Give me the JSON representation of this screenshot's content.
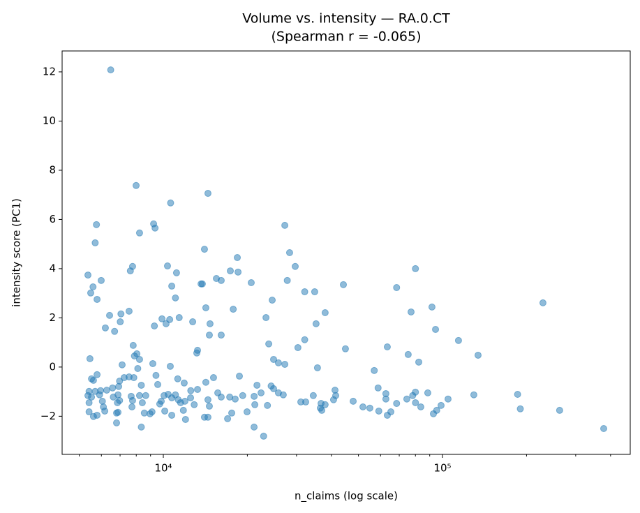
{
  "chart_data": {
    "type": "scatter",
    "title": "Volume vs. intensity — RA.0.CT",
    "subtitle": "(Spearman r = -0.065)",
    "xlabel": "n_claims (log scale)",
    "ylabel": "intensity score (PC1)",
    "xscale": "log",
    "xlim": [
      4340,
      470400
    ],
    "ylim": [
      -3.55,
      12.85
    ],
    "xticks": [
      {
        "value": 10000,
        "label": "10⁴"
      },
      {
        "value": 100000,
        "label": "10⁵"
      }
    ],
    "xminorticks": [
      5000,
      6000,
      7000,
      8000,
      9000,
      20000,
      30000,
      40000,
      50000,
      60000,
      70000,
      80000,
      90000,
      200000,
      300000,
      400000
    ],
    "yticks": [
      {
        "value": -2,
        "label": "−2"
      },
      0,
      2,
      4,
      6,
      8,
      10,
      12
    ],
    "series": [
      {
        "color": "#1f77b4",
        "x": [
          6480,
          7990,
          14450,
          10620,
          5760,
          9230,
          9340,
          27240,
          8220,
          5700,
          14040,
          28340,
          18410,
          29680,
          80000,
          7760,
          7620,
          10350,
          11150,
          17380,
          18520,
          5370,
          5990,
          13800,
          13650,
          15490,
          16120,
          20650,
          5600,
          10720,
          27800,
          44160,
          5495,
          32100,
          34850,
          68490,
          5790,
          11050,
          24550,
          229000,
          14200,
          17800,
          91690,
          77170,
          37990,
          7540,
          7050,
          6420,
          11400,
          9890,
          10540,
          23320,
          10230,
          7010,
          14700,
          35250,
          12740,
          6200,
          9290,
          94420,
          6690,
          16120,
          14620,
          32100,
          114100,
          7800,
          23860,
          30350,
          44910,
          63440,
          8040,
          13180,
          13260,
          75360,
          134100,
          5460,
          7880,
          24830,
          8220,
          25840,
          27240,
          82220,
          9170,
          10590,
          35660,
          7120,
          8100,
          56950,
          5530,
          5620,
          5790,
          9410,
          18730,
          15130,
          11260,
          7240,
          7540,
          7840,
          6970,
          11880,
          14200,
          9550,
          8340,
          21650,
          24330,
          6270,
          6580,
          6920,
          58800,
          41210,
          13260,
          24830,
          5960,
          5420,
          5700,
          15670,
          22390,
          80000,
          88570,
          10410,
          11050,
          12540,
          25840,
          62690,
          129500,
          185800,
          5370,
          5530,
          5910,
          6880,
          8220,
          8650,
          10060,
          19250,
          26900,
          34450,
          41450,
          78220,
          6620,
          7670,
          10720,
          12520,
          16120,
          17290,
          21150,
          62690,
          74520,
          104700,
          6970,
          5420,
          6050,
          7760,
          9830,
          11310,
          11950,
          14450,
          18090,
          31080,
          32360,
          40720,
          47870,
          80030,
          6850,
          8410,
          9710,
          11530,
          12900,
          21270,
          23600,
          36730,
          37990,
          68490,
          98830,
          7720,
          6100,
          51880,
          54930,
          83620,
          36510,
          14620,
          190000,
          262800,
          9110,
          6170,
          6880,
          10120,
          11800,
          19950,
          36950,
          59140,
          65310,
          95340,
          5420,
          6800,
          8550,
          8960,
          10720,
          17580,
          92790,
          5620,
          5790,
          63440,
          14040,
          14450,
          16990,
          12010,
          6800,
          8340,
          21140,
          378000,
          22870
        ],
        "values": [
          12.08,
          7.38,
          7.06,
          6.67,
          5.79,
          5.82,
          5.65,
          5.76,
          5.45,
          5.05,
          4.79,
          4.65,
          4.45,
          4.09,
          4.0,
          4.09,
          3.91,
          4.11,
          3.83,
          3.91,
          3.86,
          3.74,
          3.52,
          3.38,
          3.38,
          3.6,
          3.52,
          3.43,
          3.26,
          3.29,
          3.52,
          3.35,
          3.01,
          3.06,
          3.06,
          3.23,
          2.75,
          2.81,
          2.72,
          2.61,
          2.41,
          2.35,
          2.44,
          2.24,
          2.21,
          2.27,
          2.16,
          2.1,
          2.01,
          1.96,
          1.93,
          2.01,
          1.76,
          1.84,
          1.76,
          1.76,
          1.84,
          1.59,
          1.67,
          1.53,
          1.45,
          1.3,
          1.3,
          1.11,
          1.08,
          0.88,
          0.94,
          0.79,
          0.74,
          0.82,
          0.54,
          0.57,
          0.68,
          0.51,
          0.48,
          0.34,
          0.45,
          0.31,
          0.31,
          0.17,
          0.11,
          0.2,
          0.14,
          0.03,
          -0.03,
          0.09,
          -0.06,
          -0.14,
          -0.48,
          -0.54,
          -0.31,
          -0.34,
          -0.37,
          -0.43,
          -0.48,
          -0.43,
          -0.4,
          -0.43,
          -0.57,
          -0.65,
          -0.62,
          -0.71,
          -0.74,
          -0.74,
          -0.77,
          -0.94,
          -0.85,
          -0.79,
          -0.85,
          -0.94,
          -0.91,
          -0.88,
          -0.96,
          -0.99,
          -0.99,
          -1.05,
          -1.05,
          -1.02,
          -1.05,
          -1.11,
          -1.13,
          -0.96,
          -1.05,
          -1.08,
          -1.13,
          -1.11,
          -1.16,
          -1.22,
          -1.13,
          -1.13,
          -1.16,
          -1.16,
          -1.16,
          -1.16,
          -1.13,
          -1.16,
          -1.16,
          -1.16,
          -1.22,
          -1.19,
          -1.25,
          -1.25,
          -1.22,
          -1.22,
          -1.19,
          -1.3,
          -1.3,
          -1.3,
          -1.36,
          -1.45,
          -1.39,
          -1.36,
          -1.39,
          -1.33,
          -1.39,
          -1.33,
          -1.3,
          -1.42,
          -1.42,
          -1.33,
          -1.39,
          -1.45,
          -1.45,
          -1.45,
          -1.5,
          -1.45,
          -1.53,
          -1.53,
          -1.56,
          -1.48,
          -1.53,
          -1.48,
          -1.56,
          -1.62,
          -1.62,
          -1.62,
          -1.67,
          -1.62,
          -1.67,
          -1.59,
          -1.7,
          -1.76,
          -1.82,
          -1.79,
          -1.84,
          -1.79,
          -1.76,
          -1.82,
          -1.76,
          -1.79,
          -1.82,
          -1.76,
          -1.82,
          -1.87,
          -1.87,
          -1.9,
          -1.96,
          -1.87,
          -1.9,
          -2.01,
          -1.96,
          -1.96,
          -2.04,
          -2.04,
          -2.1,
          -2.13,
          -2.27,
          -2.44,
          -2.44,
          -2.5,
          -2.81
        ]
      }
    ]
  }
}
